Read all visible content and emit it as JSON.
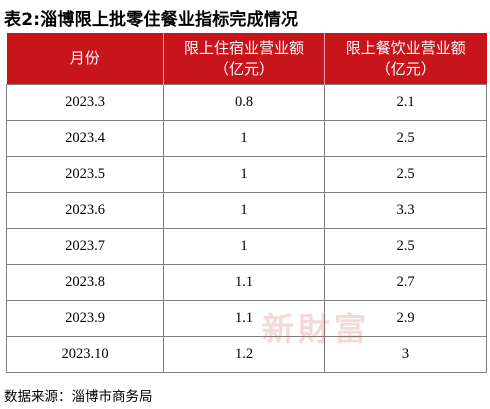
{
  "title": "表2:淄博限上批零住餐业指标完成情况",
  "table": {
    "headers": [
      "月份",
      "限上住宿业营业额（亿元）",
      "限上餐饮业营业额（亿元）"
    ],
    "header_lines": [
      [
        "月份"
      ],
      [
        "限上住宿业营业额",
        "（亿元）"
      ],
      [
        "限上餐饮业营业额",
        "（亿元）"
      ]
    ],
    "rows": [
      [
        "2023.3",
        "0.8",
        "2.1"
      ],
      [
        "2023.4",
        "1",
        "2.5"
      ],
      [
        "2023.5",
        "1",
        "2.5"
      ],
      [
        "2023.6",
        "1",
        "3.3"
      ],
      [
        "2023.7",
        "1",
        "2.5"
      ],
      [
        "2023.8",
        "1.1",
        "2.7"
      ],
      [
        "2023.9",
        "1.1",
        "2.9"
      ],
      [
        "2023.10",
        "1.2",
        "3"
      ]
    ]
  },
  "source": "数据来源：淄博市商务局",
  "watermark": "新財富",
  "colors": {
    "header_bg": "#c8151b",
    "header_text": "#ffffff",
    "border": "#7f7f7f"
  }
}
